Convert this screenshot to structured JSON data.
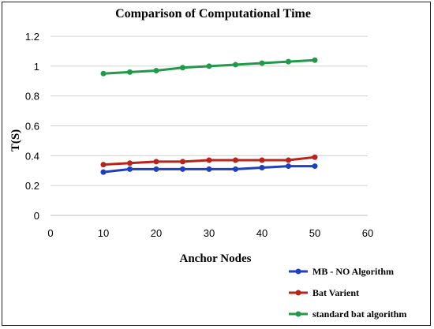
{
  "chart_data": {
    "type": "line",
    "title": "Comparison  of Computational  Time",
    "xlabel": "Anchor Nodes",
    "ylabel": "T(S)",
    "xlim": [
      0,
      60
    ],
    "ylim": [
      0,
      1.2
    ],
    "x_ticks": [
      "0",
      "10",
      "20",
      "30",
      "40",
      "50",
      "60"
    ],
    "y_ticks": [
      "0",
      "0.2",
      "0.4",
      "0.6",
      "0.8",
      "1",
      "1.2"
    ],
    "x": [
      10,
      15,
      20,
      25,
      30,
      35,
      40,
      45,
      50
    ],
    "grid": true,
    "legend_position": "bottom-right",
    "series": [
      {
        "name": "MB - NO Algorithm",
        "color": "#1f3fbf",
        "values": [
          0.29,
          0.31,
          0.31,
          0.31,
          0.31,
          0.31,
          0.32,
          0.33,
          0.33
        ]
      },
      {
        "name": "Bat Varient",
        "color": "#b8231b",
        "values": [
          0.34,
          0.35,
          0.36,
          0.36,
          0.37,
          0.37,
          0.37,
          0.37,
          0.39
        ]
      },
      {
        "name": "standard bat algorithm",
        "color": "#1f9a4a",
        "values": [
          0.95,
          0.96,
          0.97,
          0.99,
          1.0,
          1.01,
          1.02,
          1.03,
          1.04
        ]
      }
    ]
  }
}
